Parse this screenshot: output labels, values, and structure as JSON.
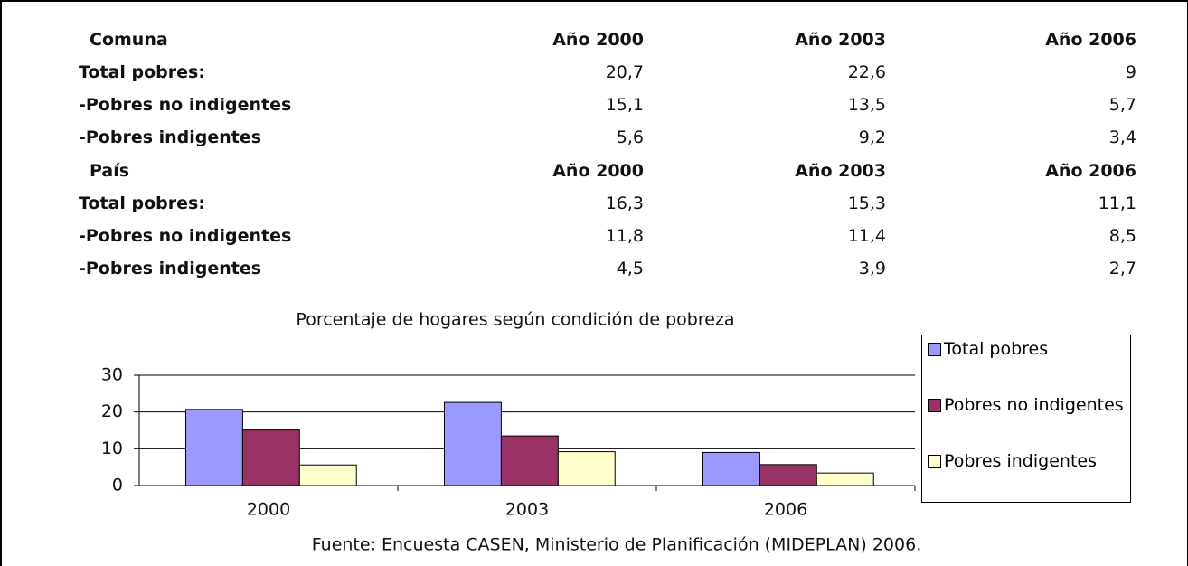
{
  "tables": [
    {
      "header": [
        "Comuna",
        "Año 2000",
        "Año 2003",
        "Año 2006"
      ],
      "rows": [
        [
          "Total pobres:",
          "20,7",
          "22,6",
          "9"
        ],
        [
          "-Pobres no indigentes",
          "15,1",
          "13,5",
          "5,7"
        ],
        [
          "-Pobres indigentes",
          "5,6",
          "9,2",
          "3,4"
        ]
      ]
    },
    {
      "header": [
        "País",
        "Año 2000",
        "Año 2003",
        "Año 2006"
      ],
      "rows": [
        [
          "Total pobres:",
          "16,3",
          "15,3",
          "11,1"
        ],
        [
          "-Pobres no indigentes",
          "11,8",
          "11,4",
          "8,5"
        ],
        [
          "-Pobres indigentes",
          "4,5",
          "3,9",
          "2,7"
        ]
      ]
    }
  ],
  "chart_data": {
    "type": "bar",
    "title": "Porcentaje de hogares según condición de pobreza",
    "categories": [
      "2000",
      "2003",
      "2006"
    ],
    "series": [
      {
        "name": "Total pobres",
        "color": "#9999ff",
        "values": [
          20.7,
          22.6,
          9
        ]
      },
      {
        "name": "Pobres no indigentes",
        "color": "#993366",
        "values": [
          15.1,
          13.5,
          5.7
        ]
      },
      {
        "name": "Pobres indigentes",
        "color": "#ffffcc",
        "values": [
          5.6,
          9.2,
          3.4
        ]
      }
    ],
    "ylim": [
      0,
      30
    ],
    "yticks": [
      0,
      10,
      20,
      30
    ],
    "grid": true,
    "legend": "right"
  },
  "note": "Fuente: Encuesta CASEN, Ministerio de Planificación (MIDEPLAN) 2006."
}
